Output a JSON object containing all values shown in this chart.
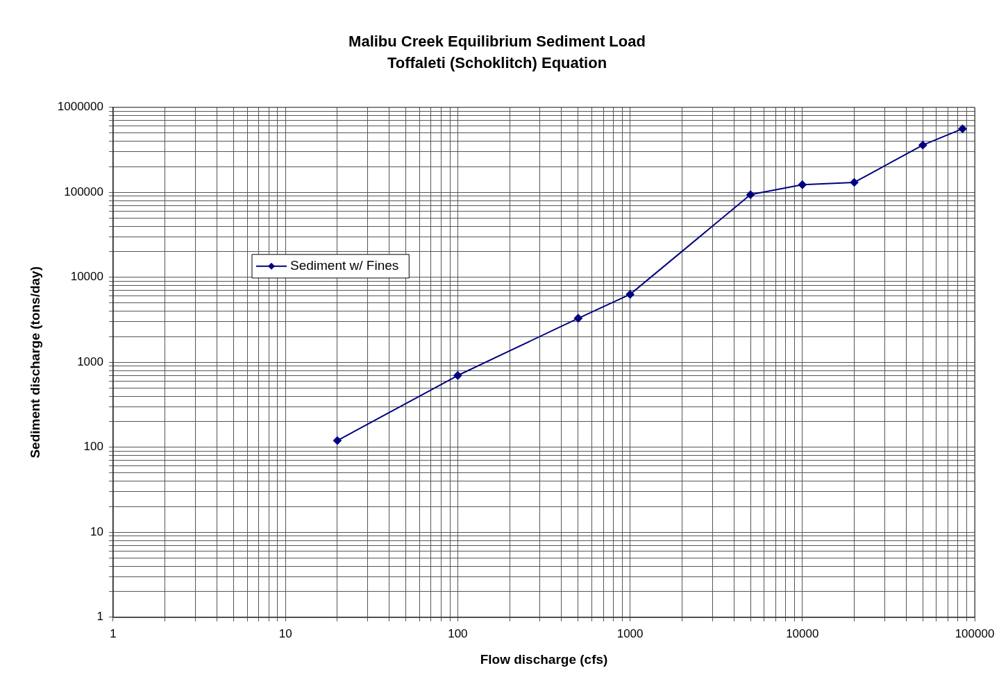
{
  "chart_data": {
    "type": "line",
    "title": "Malibu Creek Equilibrium Sediment Load",
    "subtitle": "Toffaleti (Schoklitch) Equation",
    "xlabel": "Flow discharge (cfs)",
    "ylabel": "Sediment discharge (tons/day)",
    "x": [
      20,
      100,
      500,
      1000,
      5000,
      10000,
      20000,
      50000,
      85000
    ],
    "series": [
      {
        "name": "Sediment w/ Fines",
        "color": "#000080",
        "values": [
          120,
          700,
          3300,
          6300,
          94000,
          123000,
          131000,
          360000,
          560000
        ]
      }
    ],
    "log": "xy",
    "xlim": [
      1,
      100000
    ],
    "ylim": [
      1,
      1000000
    ],
    "xticks": [
      1,
      10,
      100,
      1000,
      10000,
      100000
    ],
    "yticks": [
      1,
      10,
      100,
      1000,
      10000,
      100000,
      1000000
    ],
    "grid": true,
    "legend": "left",
    "marker": "diamond",
    "line_style": "solid"
  }
}
